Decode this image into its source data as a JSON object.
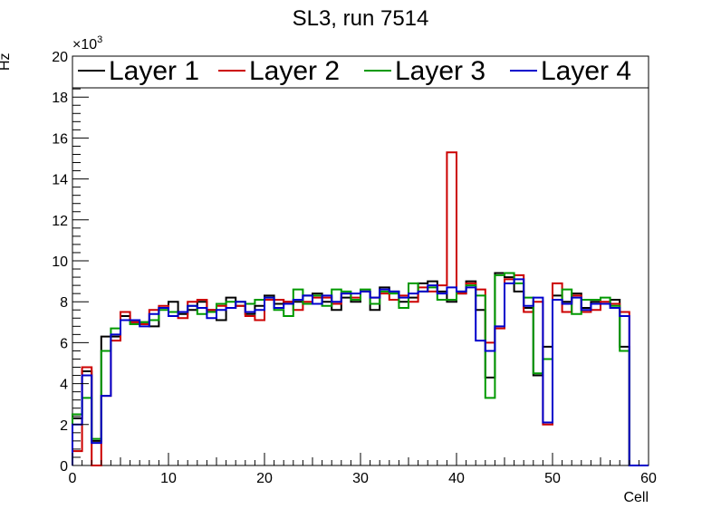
{
  "chart_data": {
    "type": "histogram-step",
    "title": "SL3, run 7514",
    "xlabel": "Cell",
    "ylabel": "Hz",
    "y_multiplier_label": "×10",
    "y_multiplier_exponent": "3",
    "xlim": [
      0,
      60
    ],
    "ylim": [
      0,
      20
    ],
    "x_ticks": [
      "0",
      "10",
      "20",
      "30",
      "40",
      "50",
      "60"
    ],
    "y_ticks": [
      "0",
      "2",
      "4",
      "6",
      "8",
      "10",
      "12",
      "14",
      "16",
      "18",
      "20"
    ],
    "legend_position": "top",
    "series": [
      {
        "name": "Layer 1",
        "color": "#000000",
        "values": [
          2.3,
          4.6,
          1.2,
          6.3,
          6.3,
          7.3,
          7.0,
          7.0,
          6.8,
          7.7,
          8.0,
          7.4,
          7.6,
          8.0,
          7.6,
          7.1,
          8.2,
          7.8,
          7.4,
          7.8,
          8.3,
          7.9,
          8.0,
          8.0,
          8.3,
          8.4,
          8.0,
          7.6,
          8.2,
          8.0,
          8.5,
          7.6,
          8.7,
          8.5,
          8.0,
          8.2,
          8.9,
          9.0,
          8.5,
          8.0,
          8.4,
          9.0,
          7.6,
          4.3,
          9.4,
          9.2,
          8.5,
          7.7,
          4.4,
          5.8,
          8.3,
          8.0,
          8.4,
          7.7,
          8.0,
          7.9,
          8.1,
          5.8,
          0.0,
          0.0
        ]
      },
      {
        "name": "Layer 2",
        "color": "#cc0000",
        "values": [
          0.7,
          4.8,
          0.0,
          3.4,
          6.1,
          7.5,
          7.0,
          6.9,
          7.6,
          7.8,
          7.5,
          7.2,
          8.0,
          8.1,
          7.6,
          7.8,
          7.7,
          7.8,
          7.3,
          7.1,
          8.1,
          8.1,
          8.0,
          7.6,
          8.0,
          8.2,
          8.2,
          7.9,
          8.4,
          8.2,
          8.5,
          8.2,
          8.4,
          8.1,
          8.3,
          8.0,
          8.7,
          8.5,
          8.8,
          15.3,
          8.4,
          8.9,
          8.6,
          6.0,
          6.7,
          9.1,
          9.3,
          7.5,
          8.0,
          2.0,
          8.9,
          7.5,
          8.3,
          7.5,
          7.6,
          8.0,
          7.9,
          7.5,
          0.0,
          0.0
        ]
      },
      {
        "name": "Layer 3",
        "color": "#009900",
        "values": [
          2.5,
          3.3,
          1.3,
          5.6,
          6.7,
          7.1,
          6.9,
          7.0,
          7.1,
          7.6,
          7.5,
          7.5,
          7.8,
          7.4,
          7.5,
          7.9,
          8.0,
          8.0,
          7.9,
          8.1,
          8.2,
          7.6,
          7.3,
          8.6,
          7.9,
          8.3,
          7.8,
          8.6,
          8.5,
          8.1,
          8.6,
          7.9,
          8.5,
          8.4,
          7.7,
          8.9,
          8.5,
          8.7,
          8.1,
          8.1,
          8.5,
          8.8,
          8.3,
          3.3,
          9.3,
          9.4,
          8.9,
          8.2,
          4.5,
          5.2,
          8.1,
          8.6,
          7.4,
          8.1,
          8.1,
          8.2,
          7.8,
          5.6,
          0.0,
          0.0
        ]
      },
      {
        "name": "Layer 4",
        "color": "#0000cc",
        "values": [
          2.0,
          4.4,
          1.1,
          3.4,
          6.4,
          7.1,
          7.1,
          6.8,
          7.4,
          7.7,
          7.3,
          7.5,
          7.8,
          7.7,
          7.2,
          7.6,
          7.7,
          8.0,
          7.5,
          7.6,
          8.2,
          7.7,
          7.9,
          8.1,
          8.3,
          7.9,
          8.3,
          8.0,
          8.4,
          8.4,
          8.5,
          8.2,
          8.6,
          8.5,
          8.2,
          8.4,
          8.5,
          8.8,
          8.4,
          8.7,
          8.5,
          8.7,
          6.1,
          5.6,
          6.8,
          8.9,
          9.1,
          7.8,
          8.2,
          2.1,
          8.1,
          7.9,
          8.2,
          7.6,
          7.9,
          7.9,
          7.7,
          7.3,
          0.0,
          0.0
        ]
      }
    ]
  }
}
